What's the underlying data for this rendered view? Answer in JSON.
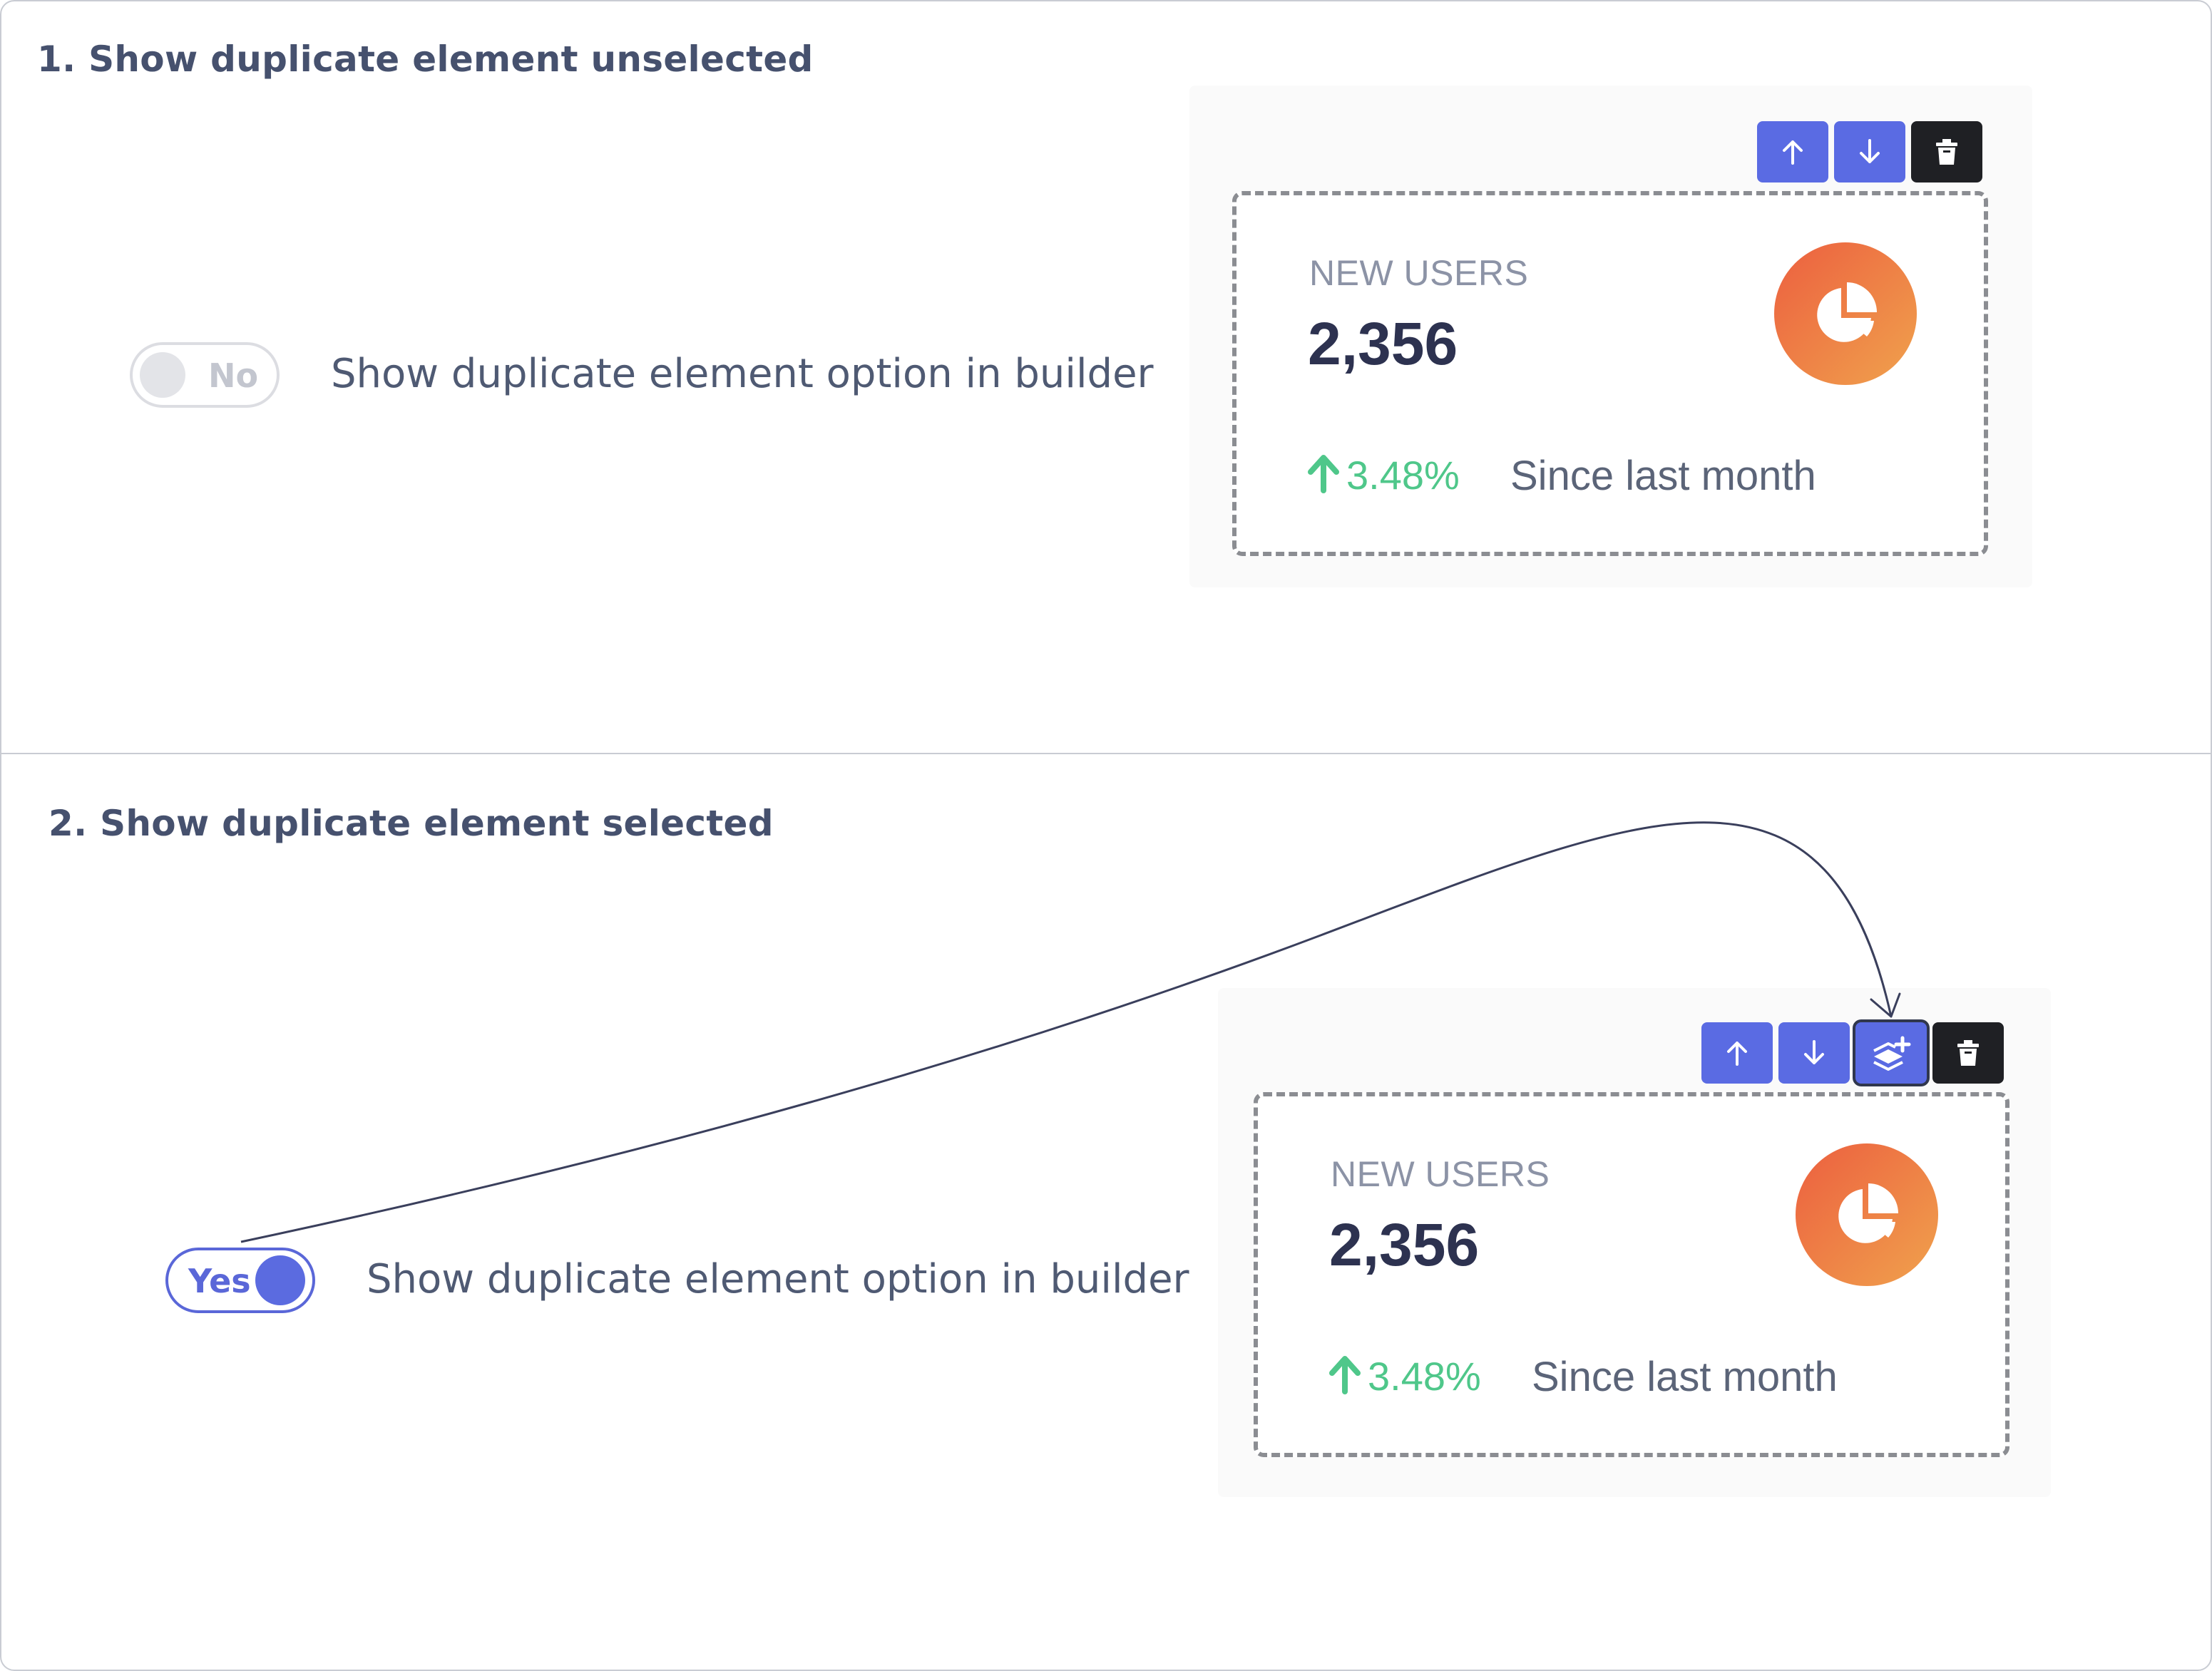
{
  "section1": {
    "title": "1. Show duplicate element unselected",
    "toggle_label": "No",
    "option_text": "Show duplicate element option in builder"
  },
  "section2": {
    "title": "2. Show duplicate element selected",
    "toggle_label": "Yes",
    "option_text": "Show duplicate element option in builder"
  },
  "card": {
    "title": "NEW USERS",
    "value": "2,356",
    "trend_value": "3.48%",
    "trend_note": "Since last month",
    "icon": "pie-chart-icon"
  },
  "toolbar": {
    "icons": [
      "arrow-up-icon",
      "arrow-down-icon",
      "duplicate-icon",
      "trash-icon"
    ]
  },
  "colors": {
    "accent": "#5a6be3",
    "dark_button": "#1f2024",
    "trend_green": "#4fc78a",
    "icon_gradient_start": "#ec5f3f",
    "icon_gradient_end": "#f0a24d",
    "heading": "#46516e"
  }
}
